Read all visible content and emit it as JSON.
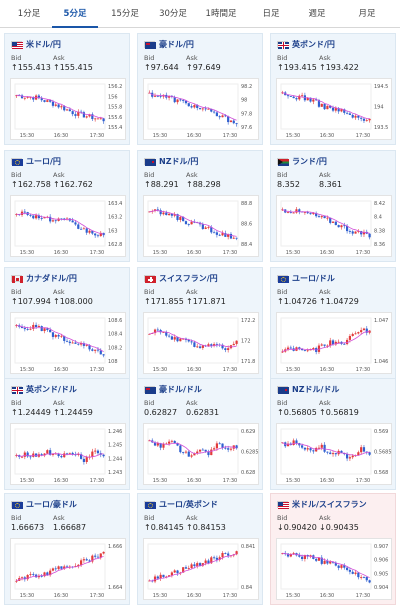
{
  "tabs": [
    "1分足",
    "5分足",
    "15分足",
    "30分足",
    "1時間足",
    "日足",
    "週足",
    "月足"
  ],
  "active_tab": 1,
  "labels": {
    "bid": "Bid",
    "ask": "Ask"
  },
  "colors": {
    "up": "#e23b3b",
    "down": "#2f5fd0",
    "ma": "#d24fd8",
    "accent": "#1a56a8"
  },
  "cards": [
    {
      "title": "米ドル/円",
      "flag": "us",
      "bid": "↑155.413",
      "ask": "↑155.415",
      "down": false,
      "ticks": [
        "156.2",
        "156",
        "155.8",
        "155.6",
        "155.4"
      ],
      "xlabels": [
        "15:30",
        "16:30",
        "17:30"
      ]
    },
    {
      "title": "豪ドル/円",
      "flag": "au",
      "bid": "↑97.644",
      "ask": "↑97.649",
      "down": false,
      "ticks": [
        "98.2",
        "98",
        "97.8",
        "97.6"
      ],
      "xlabels": [
        "15:30",
        "16:30",
        "17:30"
      ]
    },
    {
      "title": "英ポンド/円",
      "flag": "gb",
      "bid": "↑193.415",
      "ask": "↑193.422",
      "down": false,
      "ticks": [
        "194.5",
        "194",
        "193.5"
      ],
      "xlabels": [
        "15:30",
        "16:30",
        "17:30"
      ]
    },
    {
      "title": "ユーロ/円",
      "flag": "eu",
      "bid": "↑162.758",
      "ask": "↑162.762",
      "down": false,
      "ticks": [
        "163.4",
        "163.2",
        "163",
        "162.8"
      ],
      "xlabels": [
        "15:30",
        "16:30",
        "17:30"
      ]
    },
    {
      "title": "NZドル/円",
      "flag": "nz",
      "bid": "↑88.291",
      "ask": "↑88.298",
      "down": false,
      "ticks": [
        "88.8",
        "88.6",
        "88.4"
      ],
      "xlabels": [
        "15:30",
        "16:30",
        "17:30"
      ]
    },
    {
      "title": "ランド/円",
      "flag": "za",
      "bid": "8.352",
      "ask": "8.361",
      "down": false,
      "ticks": [
        "8.42",
        "8.4",
        "8.38",
        "8.36"
      ],
      "xlabels": [
        "15:30",
        "16:30",
        "17:30"
      ]
    },
    {
      "title": "カナダドル/円",
      "flag": "ca",
      "bid": "↑107.994",
      "ask": "↑108.000",
      "down": false,
      "ticks": [
        "108.6",
        "108.4",
        "108.2",
        "108"
      ],
      "xlabels": [
        "15:30",
        "16:30",
        "17:30"
      ]
    },
    {
      "title": "スイスフラン/円",
      "flag": "ch",
      "bid": "↑171.855",
      "ask": "↑171.871",
      "down": false,
      "ticks": [
        "172.2",
        "172",
        "171.8"
      ],
      "xlabels": [
        "15:30",
        "16:30",
        "17:30"
      ]
    },
    {
      "title": "ユーロ/ドル",
      "flag": "eu",
      "bid": "↑1.04726",
      "ask": "↑1.04729",
      "down": false,
      "ticks": [
        "1.047",
        "1.046"
      ],
      "xlabels": [
        "15:30",
        "16:30",
        "17:30"
      ]
    },
    {
      "title": "英ポンド/ドル",
      "flag": "gb",
      "bid": "↑1.24449",
      "ask": "↑1.24459",
      "down": false,
      "ticks": [
        "1.246",
        "1.245",
        "1.244",
        "1.243"
      ],
      "xlabels": [
        "15:30",
        "16:30",
        "17:30"
      ]
    },
    {
      "title": "豪ドル/ドル",
      "flag": "au",
      "bid": "0.62827",
      "ask": "0.62831",
      "down": false,
      "ticks": [
        "0.629",
        "0.6285",
        "0.628"
      ],
      "xlabels": [
        "15:30",
        "16:30",
        "17:30"
      ]
    },
    {
      "title": "NZドル/ドル",
      "flag": "nz",
      "bid": "↑0.56805",
      "ask": "↑0.56819",
      "down": false,
      "ticks": [
        "0.569",
        "0.5685",
        "0.568"
      ],
      "xlabels": [
        "15:30",
        "16:30",
        "17:30"
      ]
    },
    {
      "title": "ユーロ/豪ドル",
      "flag": "eu",
      "bid": "1.66673",
      "ask": "1.66687",
      "down": false,
      "ticks": [
        "1.666",
        "1.664"
      ],
      "xlabels": [
        "15:30",
        "16:30",
        "17:30"
      ]
    },
    {
      "title": "ユーロ/英ポンド",
      "flag": "eu",
      "bid": "↑0.84145",
      "ask": "↑0.84153",
      "down": false,
      "ticks": [
        "0.841",
        "0.84"
      ],
      "xlabels": [
        "15:30",
        "16:30",
        "17:30"
      ]
    },
    {
      "title": "米ドル/スイスフラン",
      "flag": "us",
      "bid": "↓0.90420",
      "ask": "↓0.90435",
      "down": true,
      "ticks": [
        "0.907",
        "0.906",
        "0.905",
        "0.904"
      ],
      "xlabels": [
        "15:30",
        "16:30",
        "17:30"
      ]
    }
  ]
}
